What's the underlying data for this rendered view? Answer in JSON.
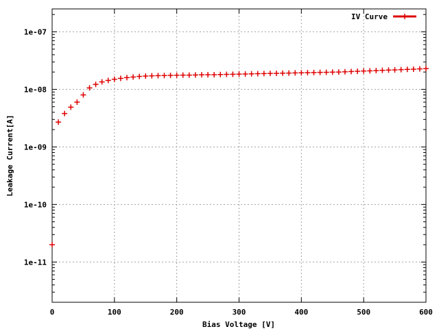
{
  "chart_data": {
    "type": "scatter",
    "xlabel": "Bias Voltage [V]",
    "ylabel": "Leakage Current[A]",
    "xlim": [
      0,
      600
    ],
    "ylim": [
      2e-12,
      2.5e-07
    ],
    "y_scale": "log",
    "grid": true,
    "legend_position": "top-right",
    "x_ticks": [
      {
        "value": 0,
        "label": "0"
      },
      {
        "value": 100,
        "label": "100"
      },
      {
        "value": 200,
        "label": "200"
      },
      {
        "value": 300,
        "label": "300"
      },
      {
        "value": 400,
        "label": "400"
      },
      {
        "value": 500,
        "label": "500"
      },
      {
        "value": 600,
        "label": "600"
      }
    ],
    "y_ticks": [
      {
        "value": 1e-11,
        "label": "1e-11"
      },
      {
        "value": 1e-10,
        "label": "1e-10"
      },
      {
        "value": 1e-09,
        "label": "1e-09"
      },
      {
        "value": 1e-08,
        "label": "1e-08"
      },
      {
        "value": 1e-07,
        "label": "1e-07"
      }
    ],
    "series": [
      {
        "name": "IV Curve",
        "color": "#dd0000",
        "marker": "plus",
        "x": [
          0,
          10,
          20,
          30,
          40,
          50,
          60,
          70,
          80,
          90,
          100,
          110,
          120,
          130,
          140,
          150,
          160,
          170,
          180,
          190,
          200,
          210,
          220,
          230,
          240,
          250,
          260,
          270,
          280,
          290,
          300,
          310,
          320,
          330,
          340,
          350,
          360,
          370,
          380,
          390,
          400,
          410,
          420,
          430,
          440,
          450,
          460,
          470,
          480,
          490,
          500,
          510,
          520,
          530,
          540,
          550,
          560,
          570,
          580,
          590,
          600
        ],
        "y": [
          2e-11,
          2.7e-09,
          3.8e-09,
          4.9e-09,
          6e-09,
          8e-09,
          1.06e-08,
          1.22e-08,
          1.35e-08,
          1.43e-08,
          1.5e-08,
          1.55e-08,
          1.6e-08,
          1.64e-08,
          1.68e-08,
          1.7e-08,
          1.72e-08,
          1.73e-08,
          1.74e-08,
          1.75e-08,
          1.76e-08,
          1.77e-08,
          1.77e-08,
          1.78e-08,
          1.79e-08,
          1.8e-08,
          1.8e-08,
          1.81e-08,
          1.82e-08,
          1.83e-08,
          1.84e-08,
          1.85e-08,
          1.86e-08,
          1.87e-08,
          1.88e-08,
          1.89e-08,
          1.9e-08,
          1.91e-08,
          1.92e-08,
          1.93e-08,
          1.94e-08,
          1.95e-08,
          1.96e-08,
          1.97e-08,
          1.98e-08,
          1.99e-08,
          2e-08,
          2.02e-08,
          2.04e-08,
          2.06e-08,
          2.08e-08,
          2.1e-08,
          2.12e-08,
          2.14e-08,
          2.16e-08,
          2.18e-08,
          2.2e-08,
          2.22e-08,
          2.24e-08,
          2.27e-08,
          2.3e-08
        ]
      }
    ]
  }
}
